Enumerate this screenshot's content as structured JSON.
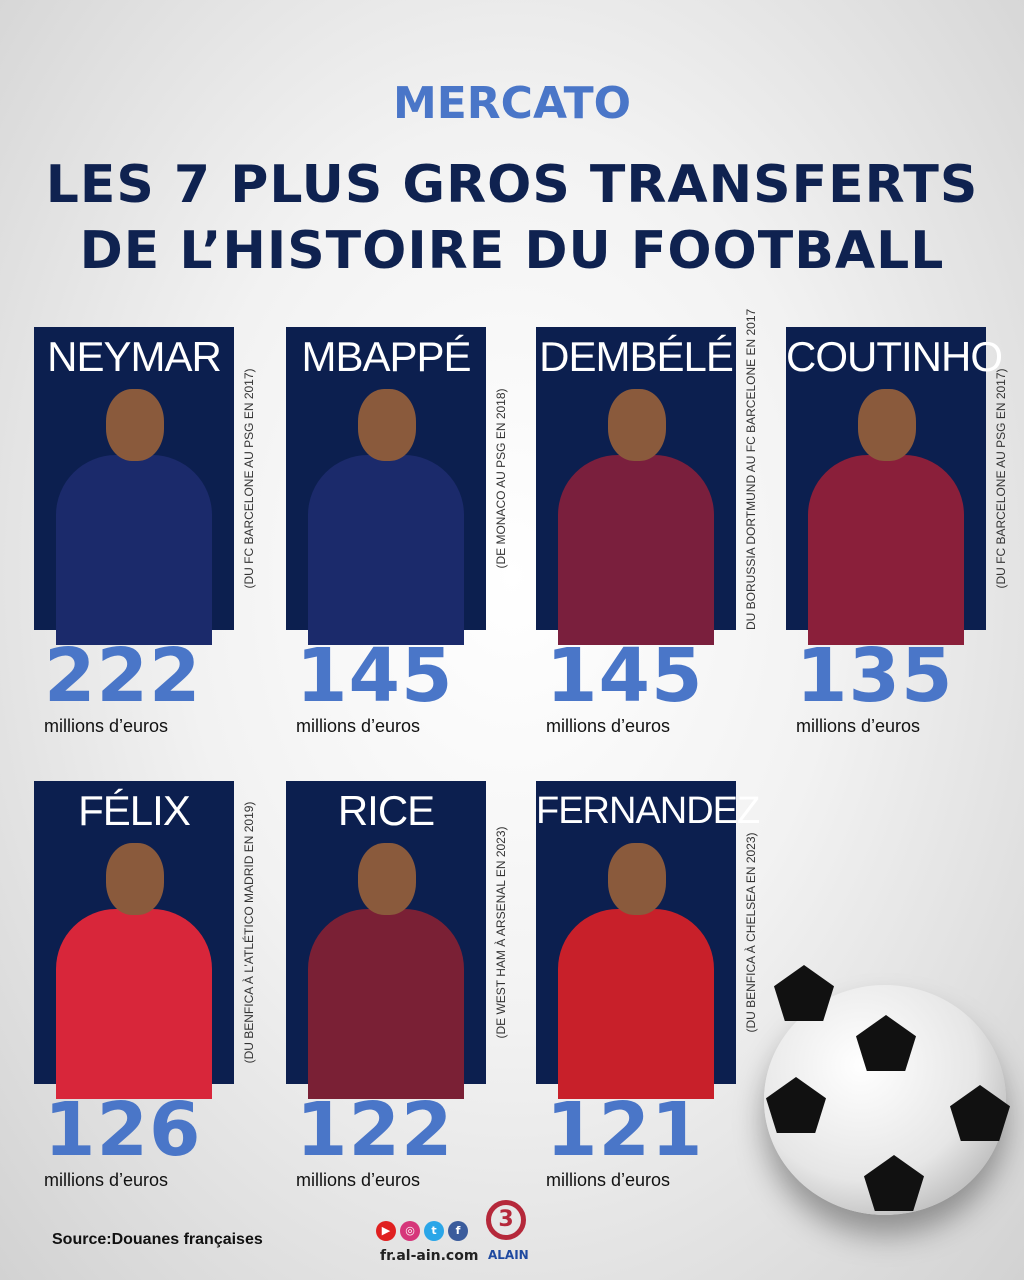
{
  "header": {
    "kicker": "MERCATO",
    "title_line1": "LES 7 PLUS GROS TRANSFERTS",
    "title_line2": "DE L’HISTOIRE DU FOOTBALL"
  },
  "players": [
    {
      "name": "NEYMAR",
      "value": "222",
      "unit": "millions d’euros",
      "caption": "(DU FC BARCELONE AU PSG EN 2017)",
      "jersey": "#1b2a6b"
    },
    {
      "name": "MBAPPÉ",
      "value": "145",
      "unit": "millions d’euros",
      "caption": "(DE MONACO AU PSG EN 2018)",
      "jersey": "#1b2a6b"
    },
    {
      "name": "DEMBÉLÉ",
      "value": "145",
      "unit": "millions d’euros",
      "caption": "DU BORUSSIA DORTMUND AU FC BARCELONE EN 2017",
      "jersey": "#7a1f3d"
    },
    {
      "name": "COUTINHO",
      "value": "135",
      "unit": "millions d’euros",
      "caption": "(DU FC BARCELONE AU PSG EN 2017)",
      "jersey": "#8a1f3a"
    },
    {
      "name": "FÉLIX",
      "value": "126",
      "unit": "millions d’euros",
      "caption": "(DU BENFICA À L’ATLÉTICO MADRID EN 2019)",
      "jersey": "#d8263a"
    },
    {
      "name": "RICE",
      "value": "122",
      "unit": "millions d’euros",
      "caption": "(DE WEST HAM À ARSENAL EN 2023)",
      "jersey": "#7a2035"
    },
    {
      "name": "FERNANDEZ",
      "value": "121",
      "unit": "millions d’euros",
      "caption": "(DU BENFICA À CHELSEA EN 2023)",
      "jersey": "#c8202a"
    }
  ],
  "footer": {
    "source": "Source:Douanes françaises",
    "site": "fr.al-ain.com",
    "logo_text": "ALAIN",
    "social": [
      "youtube-icon",
      "instagram-icon",
      "twitter-icon",
      "facebook-icon"
    ]
  }
}
